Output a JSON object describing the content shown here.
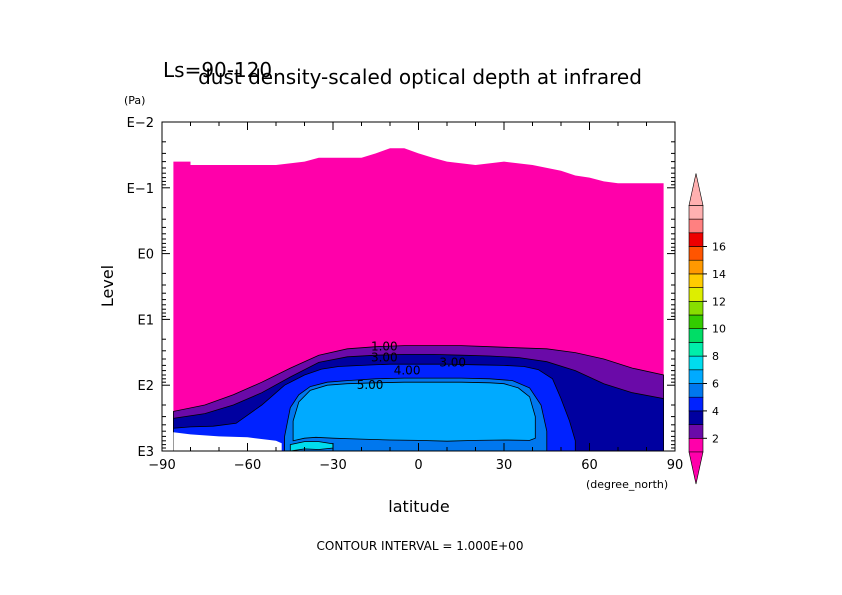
{
  "chart_data": {
    "type": "heatmap",
    "title": "dust density-scaled optical depth at infrared",
    "subtitle": "Ls=90-120",
    "xlabel": "latitude",
    "x_unit": "(degree_north)",
    "ylabel": "Level",
    "y_unit": "(Pa)",
    "xlim": [
      -90,
      90
    ],
    "x_ticks": [
      -90,
      -60,
      -30,
      0,
      30,
      60,
      90
    ],
    "x_tick_labels": [
      "−90",
      "−60",
      "−30",
      "0",
      "30",
      "60",
      "90"
    ],
    "y_scale": "log",
    "ylim": [
      1000,
      0.01
    ],
    "y_ticks": [
      0.01,
      0.1,
      1,
      10,
      100,
      1000
    ],
    "y_tick_labels": [
      "E−2",
      "E−1",
      "E0",
      "E1",
      "E2",
      "E3"
    ],
    "contour_levels": [
      1,
      2,
      3,
      4,
      5,
      6,
      7,
      8,
      9,
      10,
      11,
      12,
      13,
      14,
      15,
      16,
      17
    ],
    "contour_labels": [
      {
        "text": "1.00",
        "lat": -12,
        "pressure": 26
      },
      {
        "text": "3.00",
        "lat": -12,
        "pressure": 38
      },
      {
        "text": "3.00",
        "lat": 12,
        "pressure": 45
      },
      {
        "text": "4.00",
        "lat": -4,
        "pressure": 60
      },
      {
        "text": "5.00",
        "lat": -17,
        "pressure": 100
      }
    ],
    "regions": [
      {
        "level": "0-1",
        "color": "#ff00aa",
        "lat": [
          -86,
          -86,
          -80,
          -80,
          -70,
          -60,
          -50,
          -40,
          -35,
          -30,
          -20,
          -15,
          -10,
          -5,
          0,
          5,
          10,
          20,
          30,
          40,
          50,
          55,
          60,
          65,
          70,
          80,
          86,
          86
        ],
        "pressure": [
          250,
          0.04,
          0.04,
          0.045,
          0.045,
          0.045,
          0.045,
          0.04,
          0.035,
          0.035,
          0.035,
          0.03,
          0.025,
          0.025,
          0.03,
          0.035,
          0.04,
          0.045,
          0.04,
          0.045,
          0.055,
          0.065,
          0.07,
          0.08,
          0.085,
          0.085,
          0.085,
          70
        ]
      },
      {
        "level": "1-2",
        "color": "#6a0aa8",
        "lat": [
          -86,
          -86,
          -75,
          -65,
          -55,
          -45,
          -35,
          -25,
          -15,
          -5,
          5,
          15,
          25,
          35,
          45,
          55,
          65,
          75,
          86,
          86
        ],
        "pressure": [
          1000,
          250,
          200,
          140,
          90,
          55,
          35,
          28,
          26,
          25,
          25,
          25,
          26,
          27,
          28,
          32,
          40,
          55,
          70,
          1000
        ]
      },
      {
        "level": "2-3",
        "color": "#0000a0",
        "lat": [
          -86,
          -86,
          -75,
          -65,
          -55,
          -45,
          -35,
          -25,
          -15,
          -5,
          5,
          15,
          25,
          35,
          45,
          55,
          65,
          75,
          86,
          86
        ],
        "pressure": [
          1000,
          320,
          270,
          200,
          130,
          75,
          45,
          37,
          35,
          34,
          34,
          35,
          36,
          38,
          44,
          60,
          95,
          130,
          160,
          1000
        ]
      },
      {
        "level": "3-4",
        "color": "#0022ff",
        "lat": [
          -86,
          -86,
          -80,
          -72,
          -64,
          -55,
          -47,
          -40,
          -34,
          -28,
          -20,
          -10,
          0,
          10,
          20,
          30,
          37,
          42,
          47,
          50,
          53,
          55,
          55
        ],
        "pressure": [
          1000,
          450,
          430,
          420,
          380,
          200,
          100,
          70,
          57,
          52,
          50,
          48,
          48,
          48,
          49,
          50,
          52,
          58,
          80,
          160,
          350,
          700,
          1000
        ]
      },
      {
        "level": "4-5",
        "color": "#0077ee",
        "lat": [
          -47,
          -47,
          -45,
          -42,
          -38,
          -32,
          -25,
          -15,
          -5,
          5,
          15,
          25,
          33,
          39,
          43,
          45,
          45
        ],
        "pressure": [
          1000,
          600,
          220,
          140,
          105,
          90,
          85,
          80,
          78,
          78,
          78,
          80,
          85,
          110,
          200,
          500,
          1000
        ]
      },
      {
        "level": "5-6",
        "color": "#00aaff",
        "lat": [
          -44,
          -44,
          -42,
          -38,
          -32,
          -25,
          -15,
          -5,
          5,
          15,
          25,
          30,
          35,
          39,
          41,
          41,
          39,
          30,
          20,
          10,
          0,
          -10,
          -20,
          -30,
          -36,
          -40
        ],
        "pressure": [
          700,
          350,
          180,
          120,
          100,
          95,
          92,
          90,
          90,
          90,
          92,
          95,
          110,
          150,
          300,
          640,
          690,
          680,
          690,
          710,
          690,
          680,
          660,
          640,
          620,
          640
        ]
      },
      {
        "level": "6-7",
        "color": "#00ddee",
        "lat": [
          -45,
          -45,
          -40,
          -35,
          -30,
          -30,
          -35,
          -40,
          -45
        ],
        "pressure": [
          1000,
          800,
          720,
          720,
          780,
          900,
          950,
          930,
          1000
        ]
      }
    ],
    "masked_regions": [
      {
        "lat": [
          -86,
          -86,
          -80,
          -70,
          -60,
          -50,
          -48,
          -48,
          -44,
          -44,
          -55,
          -65,
          -86
        ],
        "pressure": [
          1000,
          520,
          560,
          600,
          620,
          700,
          760,
          1000,
          1000,
          1000,
          1000,
          1000,
          1000
        ]
      }
    ],
    "colorbar": {
      "tick_labels": [
        "2",
        "4",
        "6",
        "8",
        "10",
        "12",
        "14",
        "16"
      ],
      "tick_values": [
        2,
        4,
        6,
        8,
        10,
        12,
        14,
        16
      ],
      "colors": [
        "#ff00aa",
        "#6a0aa8",
        "#0000a0",
        "#0022ff",
        "#0077ee",
        "#00aaff",
        "#00ddee",
        "#00eeaa",
        "#00dd66",
        "#33cc00",
        "#88dd00",
        "#ddee00",
        "#ffcc00",
        "#ff9900",
        "#ff5500",
        "#ee0000",
        "#ff8080",
        "#ffb0b0"
      ],
      "triangle_top": "#ffb0b0",
      "triangle_bottom": "#ff00aa"
    },
    "footer": "CONTOUR INTERVAL = 1.000E+00"
  }
}
